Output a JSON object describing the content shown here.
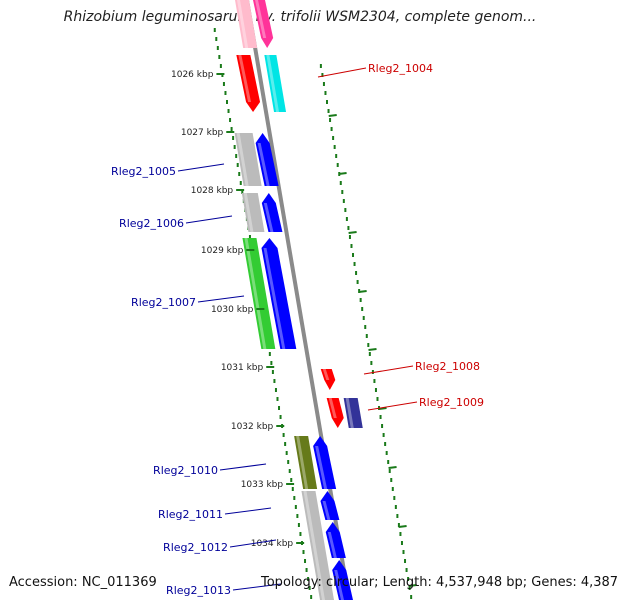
{
  "title": "Rhizobium leguminosarum bv. trifolii WSM2304, complete genom...",
  "footer": {
    "accession": "Accession: NC_011369",
    "topology": "Topology: circular; Length: 4,537,948 bp; Genes: 4,387"
  },
  "ticks": [
    {
      "label": "1026 kbp"
    },
    {
      "label": "1027 kbp"
    },
    {
      "label": "1028 kbp"
    },
    {
      "label": "1029 kbp"
    },
    {
      "label": "1030 kbp"
    },
    {
      "label": "1031 kbp"
    },
    {
      "label": "1032 kbp"
    },
    {
      "label": "1033 kbp"
    },
    {
      "label": "1034 kbp"
    }
  ],
  "gene_labels": [
    {
      "text": "Rleg2_1004",
      "strand": "plus",
      "color": "#cc0000"
    },
    {
      "text": "Rleg2_1005",
      "strand": "minus",
      "color": "#000099"
    },
    {
      "text": "Rleg2_1006",
      "strand": "minus",
      "color": "#000099"
    },
    {
      "text": "Rleg2_1007",
      "strand": "minus",
      "color": "#000099"
    },
    {
      "text": "Rleg2_1008",
      "strand": "plus",
      "color": "#cc0000"
    },
    {
      "text": "Rleg2_1009",
      "strand": "plus",
      "color": "#cc0000"
    },
    {
      "text": "Rleg2_1010",
      "strand": "minus",
      "color": "#000099"
    },
    {
      "text": "Rleg2_1011",
      "strand": "minus",
      "color": "#000099"
    },
    {
      "text": "Rleg2_1012",
      "strand": "minus",
      "color": "#000099"
    },
    {
      "text": "Rleg2_1013",
      "strand": "minus",
      "color": "#000099"
    }
  ],
  "colors": {
    "backbone": "#8a8a8a",
    "tick": "#1a7a1a",
    "cog_red": "#ff0000",
    "cog_pink": "#ff3399",
    "cog_cyan": "#00e5e5",
    "cog_blue": "#0000ff",
    "cog_gray": "#bbbbbb",
    "cog_green": "#33cc33",
    "cog_olive": "#667a1a",
    "cog_slate": "#333399",
    "cog_lightpink": "#ffbbcc"
  }
}
